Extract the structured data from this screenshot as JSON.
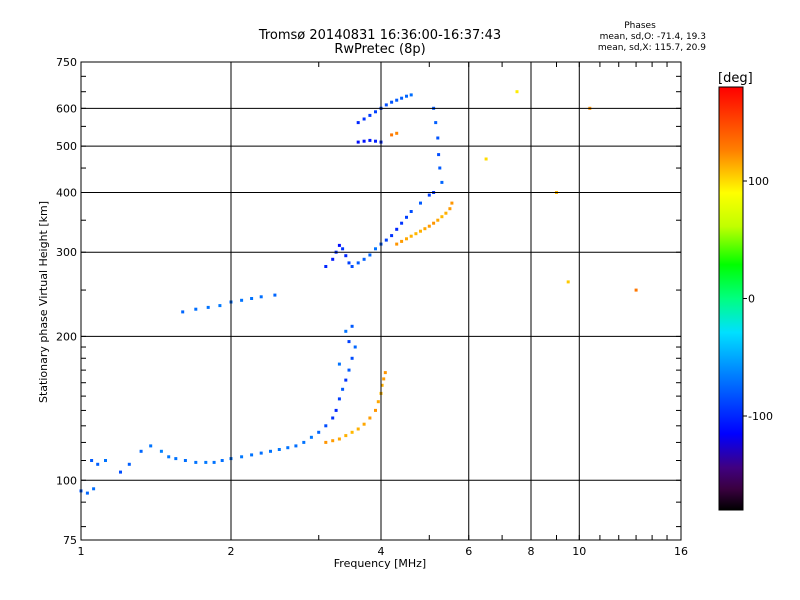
{
  "title": {
    "line1": "Tromsø 20140831 16:36:00-16:37:43",
    "line2": "RwPretec (8p)"
  },
  "phases": {
    "title": "Phases",
    "o_mode": "mean, sd,O: -71.4, 19.3",
    "x_mode": "mean, sd,X: 115.7, 20.9"
  },
  "colorbar": {
    "unit": "[deg]",
    "ticks": [
      100,
      0,
      -100
    ],
    "tick_labels": [
      "100",
      "0",
      "-100"
    ],
    "range": [
      -180,
      180
    ]
  },
  "chart_data": {
    "type": "scatter",
    "title": "Tromsø 20140831 16:36:00-16:37:43",
    "subtitle": "RwPretec (8p)",
    "xlabel": "Frequency [MHz]",
    "ylabel": "Stationary phase Virtual Height [km]",
    "xscale": "log",
    "yscale": "log",
    "xlim": [
      1,
      16
    ],
    "ylim": [
      75,
      750
    ],
    "xticks": [
      1,
      2,
      4,
      6,
      8,
      10,
      16
    ],
    "xtick_labels": [
      "1",
      "2",
      "4",
      "6",
      "8",
      "10",
      "16"
    ],
    "yticks": [
      75,
      100,
      200,
      300,
      400,
      500,
      600,
      750
    ],
    "ytick_labels": [
      "75",
      "100",
      "200",
      "300",
      "400",
      "500",
      "600",
      "750"
    ],
    "grid": true,
    "series": [
      {
        "name": "O",
        "points": [
          [
            1.0,
            95,
            -80
          ],
          [
            1.03,
            94,
            -75
          ],
          [
            1.06,
            96,
            -72
          ],
          [
            1.05,
            110,
            -80
          ],
          [
            1.08,
            108,
            -78
          ],
          [
            1.12,
            110,
            -70
          ],
          [
            1.2,
            104,
            -85
          ],
          [
            1.25,
            108,
            -78
          ],
          [
            1.32,
            115,
            -75
          ],
          [
            1.38,
            118,
            -70
          ],
          [
            1.45,
            115,
            -65
          ],
          [
            1.5,
            112,
            -68
          ],
          [
            1.55,
            111,
            -70
          ],
          [
            1.62,
            110,
            -72
          ],
          [
            1.7,
            109,
            -70
          ],
          [
            1.78,
            109,
            -68
          ],
          [
            1.85,
            109,
            -70
          ],
          [
            1.92,
            110,
            -72
          ],
          [
            2.0,
            111,
            -70
          ],
          [
            2.1,
            112,
            -68
          ],
          [
            2.2,
            113,
            -70
          ],
          [
            2.3,
            114,
            -72
          ],
          [
            2.4,
            115,
            -70
          ],
          [
            2.5,
            116,
            -69
          ],
          [
            2.6,
            117,
            -70
          ],
          [
            2.7,
            118,
            -72
          ],
          [
            2.8,
            120,
            -70
          ],
          [
            2.9,
            123,
            -68
          ],
          [
            3.0,
            126,
            -75
          ],
          [
            3.1,
            130,
            -85
          ],
          [
            3.2,
            135,
            -95
          ],
          [
            3.25,
            140,
            -100
          ],
          [
            3.3,
            148,
            -90
          ],
          [
            3.35,
            155,
            -80
          ],
          [
            3.4,
            162,
            -95
          ],
          [
            3.45,
            170,
            -80
          ],
          [
            3.3,
            175,
            -70
          ],
          [
            3.5,
            180,
            -85
          ],
          [
            3.55,
            190,
            -75
          ],
          [
            3.45,
            195,
            -90
          ],
          [
            3.4,
            205,
            -70
          ],
          [
            3.5,
            210,
            -80
          ],
          [
            1.6,
            225,
            -75
          ],
          [
            1.7,
            228,
            -72
          ],
          [
            1.8,
            230,
            -70
          ],
          [
            1.9,
            232,
            -68
          ],
          [
            2.0,
            236,
            -72
          ],
          [
            2.1,
            238,
            -70
          ],
          [
            2.2,
            240,
            -70
          ],
          [
            2.3,
            242,
            -72
          ],
          [
            2.45,
            244,
            -75
          ],
          [
            3.1,
            280,
            -100
          ],
          [
            3.2,
            290,
            -105
          ],
          [
            3.25,
            300,
            -98
          ],
          [
            3.3,
            310,
            -110
          ],
          [
            3.35,
            305,
            -95
          ],
          [
            3.4,
            295,
            -100
          ],
          [
            3.45,
            285,
            -90
          ],
          [
            3.5,
            280,
            -85
          ],
          [
            3.6,
            285,
            -80
          ],
          [
            3.7,
            290,
            -78
          ],
          [
            3.8,
            296,
            -75
          ],
          [
            3.9,
            305,
            -70
          ],
          [
            4.0,
            312,
            -80
          ],
          [
            4.1,
            318,
            -90
          ],
          [
            4.2,
            325,
            -95
          ],
          [
            4.3,
            335,
            -100
          ],
          [
            4.4,
            345,
            -95
          ],
          [
            4.5,
            355,
            -90
          ],
          [
            4.6,
            365,
            -85
          ],
          [
            4.8,
            380,
            -80
          ],
          [
            5.0,
            395,
            -90
          ],
          [
            5.1,
            400,
            -95
          ],
          [
            3.6,
            560,
            -100
          ],
          [
            3.7,
            570,
            -95
          ],
          [
            3.8,
            580,
            -92
          ],
          [
            3.9,
            590,
            -90
          ],
          [
            4.0,
            600,
            -88
          ],
          [
            4.1,
            610,
            -85
          ],
          [
            4.2,
            618,
            -82
          ],
          [
            4.3,
            624,
            -80
          ],
          [
            4.4,
            630,
            -78
          ],
          [
            4.5,
            636,
            -75
          ],
          [
            4.6,
            640,
            -72
          ],
          [
            3.6,
            510,
            -110
          ],
          [
            3.7,
            512,
            -108
          ],
          [
            3.8,
            514,
            -105
          ],
          [
            3.9,
            512,
            -103
          ],
          [
            4.0,
            510,
            -100
          ],
          [
            5.1,
            600,
            -80
          ],
          [
            5.15,
            560,
            -78
          ],
          [
            5.2,
            520,
            -82
          ],
          [
            5.22,
            480,
            -85
          ],
          [
            5.25,
            450,
            -80
          ],
          [
            5.3,
            420,
            -75
          ]
        ]
      },
      {
        "name": "X",
        "points": [
          [
            3.1,
            120,
            120
          ],
          [
            3.2,
            121,
            118
          ],
          [
            3.3,
            122,
            115
          ],
          [
            3.4,
            124,
            112
          ],
          [
            3.5,
            126,
            110
          ],
          [
            3.6,
            128,
            112
          ],
          [
            3.7,
            131,
            115
          ],
          [
            3.8,
            135,
            118
          ],
          [
            3.9,
            140,
            120
          ],
          [
            3.95,
            146,
            115
          ],
          [
            4.0,
            152,
            110
          ],
          [
            4.02,
            158,
            112
          ],
          [
            4.05,
            163,
            118
          ],
          [
            4.08,
            168,
            120
          ],
          [
            4.3,
            312,
            120
          ],
          [
            4.4,
            316,
            118
          ],
          [
            4.5,
            320,
            115
          ],
          [
            4.6,
            324,
            112
          ],
          [
            4.7,
            328,
            110
          ],
          [
            4.8,
            332,
            112
          ],
          [
            4.9,
            336,
            115
          ],
          [
            5.0,
            340,
            118
          ],
          [
            5.1,
            345,
            120
          ],
          [
            5.2,
            350,
            115
          ],
          [
            5.3,
            356,
            110
          ],
          [
            5.4,
            362,
            112
          ],
          [
            5.5,
            370,
            118
          ],
          [
            5.55,
            380,
            120
          ],
          [
            4.2,
            528,
            130
          ],
          [
            4.3,
            532,
            125
          ],
          [
            6.5,
            470,
            100
          ],
          [
            7.5,
            650,
            95
          ],
          [
            9.0,
            400,
            110
          ],
          [
            9.5,
            260,
            105
          ],
          [
            10.5,
            600,
            120
          ],
          [
            13.0,
            250,
            130
          ]
        ]
      }
    ]
  }
}
